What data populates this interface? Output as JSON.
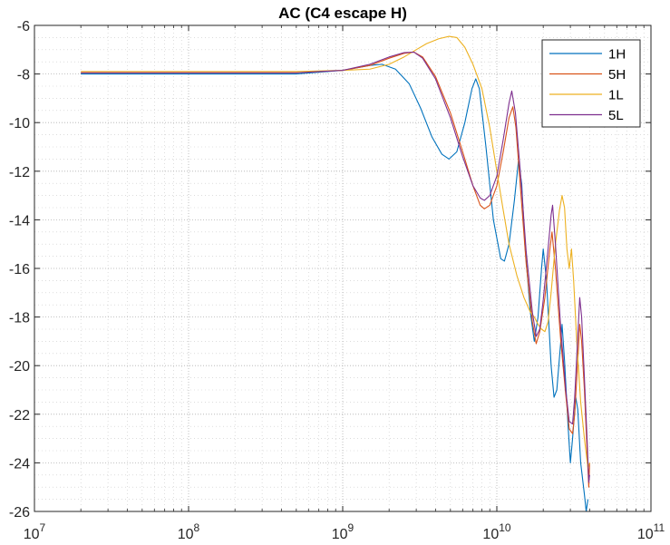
{
  "chart_data": {
    "type": "line",
    "title": "AC (C4 escape H)",
    "xlabel": "",
    "ylabel": "",
    "xscale": "log",
    "xlim": [
      10000000,
      100000000000
    ],
    "ylim": [
      -26,
      -6
    ],
    "grid": true,
    "legend_position": "top-right",
    "x_ticks": [
      {
        "value": 10000000,
        "base": "10",
        "exp": "7"
      },
      {
        "value": 100000000,
        "base": "10",
        "exp": "8"
      },
      {
        "value": 1000000000,
        "base": "10",
        "exp": "9"
      },
      {
        "value": 10000000000,
        "base": "10",
        "exp": "10"
      },
      {
        "value": 100000000000,
        "base": "10",
        "exp": "11"
      }
    ],
    "y_ticks": [
      {
        "value": -6,
        "label": "-6"
      },
      {
        "value": -8,
        "label": "-8"
      },
      {
        "value": -10,
        "label": "-10"
      },
      {
        "value": -12,
        "label": "-12"
      },
      {
        "value": -14,
        "label": "-14"
      },
      {
        "value": -16,
        "label": "-16"
      },
      {
        "value": -18,
        "label": "-18"
      },
      {
        "value": -20,
        "label": "-20"
      },
      {
        "value": -22,
        "label": "-22"
      },
      {
        "value": -24,
        "label": "-24"
      },
      {
        "value": -26,
        "label": "-26"
      }
    ],
    "series": [
      {
        "name": "1H",
        "color": "#0072BD",
        "points": [
          [
            20000000,
            -8.0
          ],
          [
            100000000,
            -8.0
          ],
          [
            500000000,
            -8.0
          ],
          [
            1000000000,
            -7.85
          ],
          [
            1500000000,
            -7.65
          ],
          [
            1800000000,
            -7.6
          ],
          [
            2200000000,
            -7.8
          ],
          [
            2700000000,
            -8.4
          ],
          [
            3200000000,
            -9.4
          ],
          [
            3800000000,
            -10.6
          ],
          [
            4400000000,
            -11.3
          ],
          [
            4900000000,
            -11.5
          ],
          [
            5500000000,
            -11.2
          ],
          [
            6200000000,
            -10.0
          ],
          [
            6900000000,
            -8.6
          ],
          [
            7300000000,
            -8.2
          ],
          [
            7700000000,
            -8.6
          ],
          [
            8500000000,
            -11.0
          ],
          [
            9500000000,
            -14.0
          ],
          [
            10600000000,
            -15.6
          ],
          [
            11200000000,
            -15.7
          ],
          [
            12000000000,
            -15.0
          ],
          [
            13000000000,
            -13.2
          ],
          [
            13800000000,
            -11.6
          ],
          [
            14500000000,
            -12.5
          ],
          [
            15200000000,
            -15.0
          ],
          [
            16500000000,
            -17.8
          ],
          [
            17500000000,
            -19.0
          ],
          [
            18500000000,
            -18.0
          ],
          [
            19500000000,
            -16.0
          ],
          [
            20000000000,
            -15.2
          ],
          [
            21000000000,
            -16.5
          ],
          [
            22500000000,
            -20.0
          ],
          [
            23500000000,
            -21.3
          ],
          [
            24500000000,
            -21.0
          ],
          [
            26000000000,
            -19.0
          ],
          [
            26500000000,
            -18.3
          ],
          [
            27500000000,
            -19.8
          ],
          [
            29000000000,
            -22.5
          ],
          [
            30000000000,
            -24.0
          ],
          [
            31000000000,
            -23.0
          ],
          [
            32500000000,
            -21.3
          ],
          [
            33500000000,
            -21.8
          ],
          [
            35000000000,
            -24.0
          ],
          [
            37000000000,
            -25.3
          ],
          [
            38000000000,
            -26.0
          ],
          [
            39000000000,
            -25.5
          ]
        ]
      },
      {
        "name": "5H",
        "color": "#D95319",
        "points": [
          [
            20000000,
            -7.95
          ],
          [
            100000000,
            -7.95
          ],
          [
            500000000,
            -7.95
          ],
          [
            1000000000,
            -7.85
          ],
          [
            1500000000,
            -7.65
          ],
          [
            2000000000,
            -7.35
          ],
          [
            2500000000,
            -7.15
          ],
          [
            2900000000,
            -7.1
          ],
          [
            3300000000,
            -7.3
          ],
          [
            4000000000,
            -8.1
          ],
          [
            5000000000,
            -9.6
          ],
          [
            6000000000,
            -11.2
          ],
          [
            7000000000,
            -12.6
          ],
          [
            7800000000,
            -13.4
          ],
          [
            8300000000,
            -13.55
          ],
          [
            9000000000,
            -13.4
          ],
          [
            10000000000,
            -12.6
          ],
          [
            11000000000,
            -11.2
          ],
          [
            12000000000,
            -9.8
          ],
          [
            12700000000,
            -9.35
          ],
          [
            13300000000,
            -10.2
          ],
          [
            14200000000,
            -12.6
          ],
          [
            15500000000,
            -15.8
          ],
          [
            17000000000,
            -18.2
          ],
          [
            18000000000,
            -19.1
          ],
          [
            19000000000,
            -18.6
          ],
          [
            20500000000,
            -17.2
          ],
          [
            22000000000,
            -15.3
          ],
          [
            22800000000,
            -14.5
          ],
          [
            24000000000,
            -16.0
          ],
          [
            26000000000,
            -19.0
          ],
          [
            28000000000,
            -21.2
          ],
          [
            29500000000,
            -22.6
          ],
          [
            31000000000,
            -22.8
          ],
          [
            32000000000,
            -22.0
          ],
          [
            33500000000,
            -19.8
          ],
          [
            34500000000,
            -18.3
          ],
          [
            35500000000,
            -19.0
          ],
          [
            37000000000,
            -21.0
          ],
          [
            38500000000,
            -23.5
          ],
          [
            39500000000,
            -25.0
          ],
          [
            40000000000,
            -24.0
          ]
        ]
      },
      {
        "name": "1L",
        "color": "#EDB120",
        "points": [
          [
            20000000,
            -7.9
          ],
          [
            100000000,
            -7.9
          ],
          [
            500000000,
            -7.9
          ],
          [
            1000000000,
            -7.85
          ],
          [
            1500000000,
            -7.8
          ],
          [
            2000000000,
            -7.6
          ],
          [
            2500000000,
            -7.3
          ],
          [
            3000000000,
            -7.0
          ],
          [
            3500000000,
            -6.75
          ],
          [
            4200000000,
            -6.55
          ],
          [
            4900000000,
            -6.45
          ],
          [
            5500000000,
            -6.5
          ],
          [
            6200000000,
            -6.9
          ],
          [
            7000000000,
            -7.6
          ],
          [
            8000000000,
            -8.6
          ],
          [
            9000000000,
            -10.2
          ],
          [
            10000000000,
            -12.0
          ],
          [
            11000000000,
            -13.6
          ],
          [
            12000000000,
            -15.0
          ],
          [
            13500000000,
            -16.3
          ],
          [
            15000000000,
            -17.2
          ],
          [
            16500000000,
            -17.8
          ],
          [
            17500000000,
            -18.0
          ],
          [
            18500000000,
            -18.3
          ],
          [
            19500000000,
            -18.5
          ],
          [
            20500000000,
            -18.6
          ],
          [
            21500000000,
            -18.2
          ],
          [
            22500000000,
            -17.0
          ],
          [
            24000000000,
            -15.0
          ],
          [
            25500000000,
            -13.6
          ],
          [
            26500000000,
            -13.0
          ],
          [
            27500000000,
            -13.5
          ],
          [
            28500000000,
            -15.2
          ],
          [
            29500000000,
            -16.0
          ],
          [
            30500000000,
            -15.2
          ],
          [
            31500000000,
            -16.5
          ],
          [
            33000000000,
            -19.0
          ],
          [
            35000000000,
            -21.5
          ],
          [
            37000000000,
            -23.0
          ],
          [
            39000000000,
            -24.2
          ],
          [
            40000000000,
            -24.0
          ]
        ]
      },
      {
        "name": "5L",
        "color": "#7E2F8E",
        "points": [
          [
            20000000,
            -7.95
          ],
          [
            100000000,
            -7.95
          ],
          [
            500000000,
            -7.95
          ],
          [
            1000000000,
            -7.85
          ],
          [
            1500000000,
            -7.6
          ],
          [
            2000000000,
            -7.3
          ],
          [
            2500000000,
            -7.12
          ],
          [
            2900000000,
            -7.1
          ],
          [
            3300000000,
            -7.35
          ],
          [
            4000000000,
            -8.2
          ],
          [
            5000000000,
            -9.8
          ],
          [
            6000000000,
            -11.4
          ],
          [
            7000000000,
            -12.6
          ],
          [
            7800000000,
            -13.1
          ],
          [
            8300000000,
            -13.2
          ],
          [
            9000000000,
            -13.0
          ],
          [
            10000000000,
            -12.2
          ],
          [
            11000000000,
            -10.7
          ],
          [
            12000000000,
            -9.2
          ],
          [
            12500000000,
            -8.7
          ],
          [
            13200000000,
            -9.6
          ],
          [
            14200000000,
            -12.0
          ],
          [
            15500000000,
            -15.3
          ],
          [
            17000000000,
            -17.8
          ],
          [
            18000000000,
            -18.8
          ],
          [
            19000000000,
            -18.5
          ],
          [
            20000000000,
            -17.3
          ],
          [
            21500000000,
            -15.2
          ],
          [
            22500000000,
            -13.8
          ],
          [
            23000000000,
            -13.4
          ],
          [
            24000000000,
            -15.0
          ],
          [
            26000000000,
            -18.5
          ],
          [
            28000000000,
            -21.0
          ],
          [
            29500000000,
            -22.3
          ],
          [
            31000000000,
            -22.4
          ],
          [
            32000000000,
            -21.3
          ],
          [
            33500000000,
            -18.8
          ],
          [
            34500000000,
            -17.2
          ],
          [
            35500000000,
            -18.0
          ],
          [
            37000000000,
            -20.5
          ],
          [
            38500000000,
            -23.0
          ],
          [
            39500000000,
            -24.8
          ],
          [
            40000000000,
            -24.5
          ]
        ]
      }
    ]
  }
}
